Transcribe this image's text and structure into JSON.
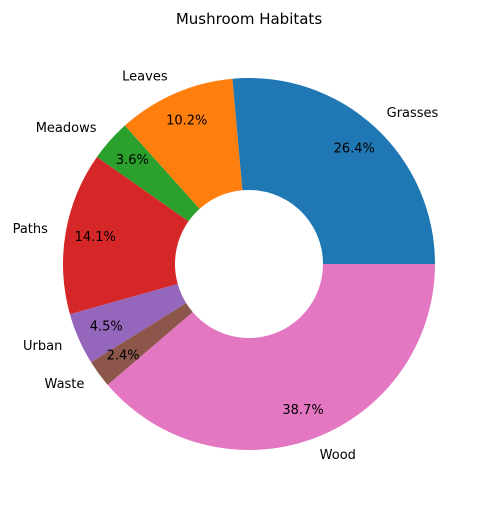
{
  "chart_data": {
    "type": "pie",
    "variant": "donut",
    "title": "Mushroom Habitats",
    "categories": [
      "Grasses",
      "Leaves",
      "Meadows",
      "Paths",
      "Urban",
      "Waste",
      "Wood"
    ],
    "values": [
      26.4,
      10.2,
      3.6,
      14.1,
      4.5,
      2.4,
      38.7
    ],
    "value_labels": [
      "26.4%",
      "10.2%",
      "3.6%",
      "14.1%",
      "4.5%",
      "2.4%",
      "38.7%"
    ],
    "colors": [
      "#1f77b4",
      "#ff7f0e",
      "#2ca02c",
      "#d62728",
      "#9467bd",
      "#8c564b",
      "#e377c2"
    ],
    "start_angle_deg": 0,
    "direction": "counterclockwise",
    "legend": "none"
  }
}
